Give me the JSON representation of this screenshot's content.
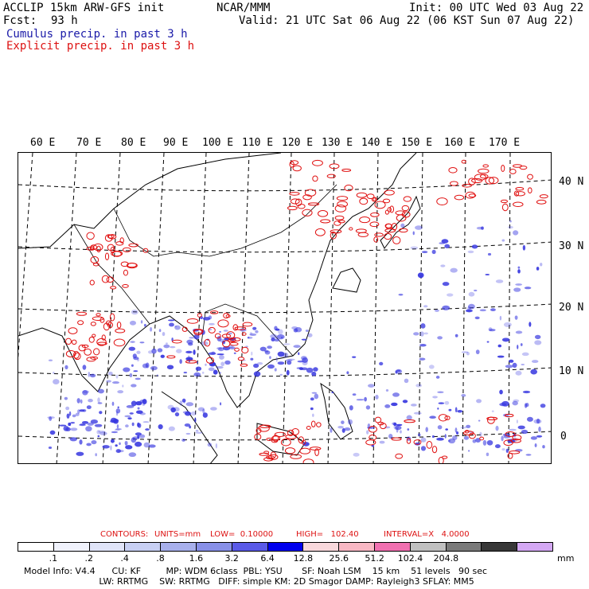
{
  "header": {
    "title_line1": "ACCLIP 15km ARW-GFS init",
    "forecast_label": "Fcst:",
    "forecast_hours": "93 h",
    "center": "NCAR/MMM",
    "init": "Init: 00 UTC Wed 03 Aug 22",
    "valid": "Valid: 21 UTC Sat 06 Aug 22 (06 KST Sun 07 Aug 22)",
    "legend_cumulus": "Cumulus precip. in past 3 h",
    "legend_explicit": "Explicit precip. in past 3 h"
  },
  "colors": {
    "cumulus": "#3838e0",
    "explicit": "#e01010",
    "coast": "#000000"
  },
  "map": {
    "lon_labels": [
      "60 E",
      "70 E",
      "80 E",
      "90 E",
      "100 E",
      "110 E",
      "120 E",
      "130 E",
      "140 E",
      "150 E",
      "160 E",
      "170 E"
    ],
    "lat_labels": [
      "40 N",
      "30 N",
      "20 N",
      "10 N",
      "0"
    ]
  },
  "contours": {
    "label": "CONTOURS:",
    "units": "UNITS=mm",
    "low": "LOW=  0.10000",
    "high": "HIGH=   102.40",
    "interval": "INTERVAL=X   4.0000"
  },
  "colorbar": {
    "colors": [
      "#ffffff",
      "#f0f2fc",
      "#e0e4f8",
      "#c8d0f4",
      "#a8b0ec",
      "#8890e8",
      "#5a5ae8",
      "#0000ee",
      "#f8d8dc",
      "#f8b8c4",
      "#f070b0",
      "#c0c0c0",
      "#7a7a7a",
      "#383838",
      "#d4a8f4"
    ],
    "ticks": [
      ".1",
      ".2",
      ".4",
      ".8",
      "1.6",
      "3.2",
      "6.4",
      "12.8",
      "25.6",
      "51.2",
      "102.4",
      "204.8"
    ],
    "unit": "mm"
  },
  "model_info": {
    "line1": "Model Info: V4.4      CU: KF         MP: WDM 6class  PBL: YSU       SF: Noah LSM    15 km    51 levels   90 sec",
    "line2": "                           LW: RRTMG    SW: RRTMG   DIFF: simple KM: 2D Smagor DAMP: Rayleigh3 SFLAY: MM5"
  }
}
